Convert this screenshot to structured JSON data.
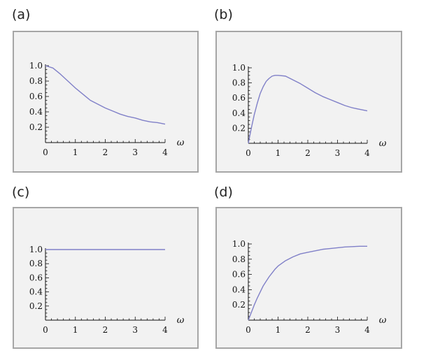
{
  "chart_data": [
    {
      "type": "line",
      "panel_label": "(a)",
      "xlabel": "ω",
      "xlim": [
        0,
        4
      ],
      "ylim": [
        0,
        1.0
      ],
      "x_ticks": [
        "0",
        "1",
        "2",
        "3",
        "4"
      ],
      "y_ticks": [
        "0.2",
        "0.4",
        "0.6",
        "0.8",
        "1.0"
      ],
      "series": [
        {
          "color": "#8080c8",
          "x": [
            0,
            0.25,
            0.5,
            0.75,
            1,
            1.25,
            1.5,
            1.75,
            2,
            2.25,
            2.5,
            2.75,
            3,
            3.25,
            3.5,
            3.75,
            4
          ],
          "y": [
            1.0,
            0.97,
            0.89,
            0.8,
            0.71,
            0.63,
            0.55,
            0.5,
            0.45,
            0.41,
            0.37,
            0.34,
            0.32,
            0.29,
            0.27,
            0.26,
            0.24
          ]
        }
      ]
    },
    {
      "type": "line",
      "panel_label": "(b)",
      "xlabel": "ω",
      "xlim": [
        0,
        4
      ],
      "ylim": [
        0,
        1.0
      ],
      "x_ticks": [
        "0",
        "1",
        "2",
        "3",
        "4"
      ],
      "y_ticks": [
        "0.2",
        "0.4",
        "0.6",
        "0.8",
        "1.0"
      ],
      "series": [
        {
          "color": "#8080c8",
          "x": [
            0,
            0.1,
            0.2,
            0.3,
            0.4,
            0.5,
            0.6,
            0.7,
            0.8,
            0.9,
            1,
            1.25,
            1.5,
            1.75,
            2,
            2.25,
            2.5,
            2.75,
            3,
            3.25,
            3.5,
            3.75,
            4
          ],
          "y": [
            0,
            0.2,
            0.38,
            0.53,
            0.66,
            0.75,
            0.82,
            0.86,
            0.89,
            0.9,
            0.9,
            0.89,
            0.84,
            0.79,
            0.73,
            0.67,
            0.62,
            0.58,
            0.54,
            0.5,
            0.47,
            0.45,
            0.43
          ]
        }
      ]
    },
    {
      "type": "line",
      "panel_label": "(c)",
      "xlabel": "ω",
      "xlim": [
        0,
        4
      ],
      "ylim": [
        0,
        1.0
      ],
      "x_ticks": [
        "0",
        "1",
        "2",
        "3",
        "4"
      ],
      "y_ticks": [
        "0.2",
        "0.4",
        "0.6",
        "0.8",
        "1.0"
      ],
      "series": [
        {
          "color": "#8080c8",
          "x": [
            0,
            1,
            2,
            3,
            4
          ],
          "y": [
            1.0,
            1.0,
            1.0,
            1.0,
            1.0
          ]
        }
      ]
    },
    {
      "type": "line",
      "panel_label": "(d)",
      "xlabel": "ω",
      "xlim": [
        0,
        4
      ],
      "ylim": [
        0,
        1.0
      ],
      "x_ticks": [
        "0",
        "1",
        "2",
        "3",
        "4"
      ],
      "y_ticks": [
        "0.2",
        "0.4",
        "0.6",
        "0.8",
        "1.0"
      ],
      "series": [
        {
          "color": "#8080c8",
          "x": [
            0,
            0.1,
            0.2,
            0.3,
            0.4,
            0.5,
            0.6,
            0.7,
            0.8,
            0.9,
            1,
            1.25,
            1.5,
            1.75,
            2,
            2.25,
            2.5,
            2.75,
            3,
            3.25,
            3.5,
            3.75,
            4
          ],
          "y": [
            0,
            0.1,
            0.2,
            0.29,
            0.37,
            0.45,
            0.51,
            0.57,
            0.62,
            0.67,
            0.71,
            0.78,
            0.83,
            0.87,
            0.89,
            0.91,
            0.93,
            0.94,
            0.95,
            0.96,
            0.965,
            0.97,
            0.97
          ]
        }
      ]
    }
  ]
}
